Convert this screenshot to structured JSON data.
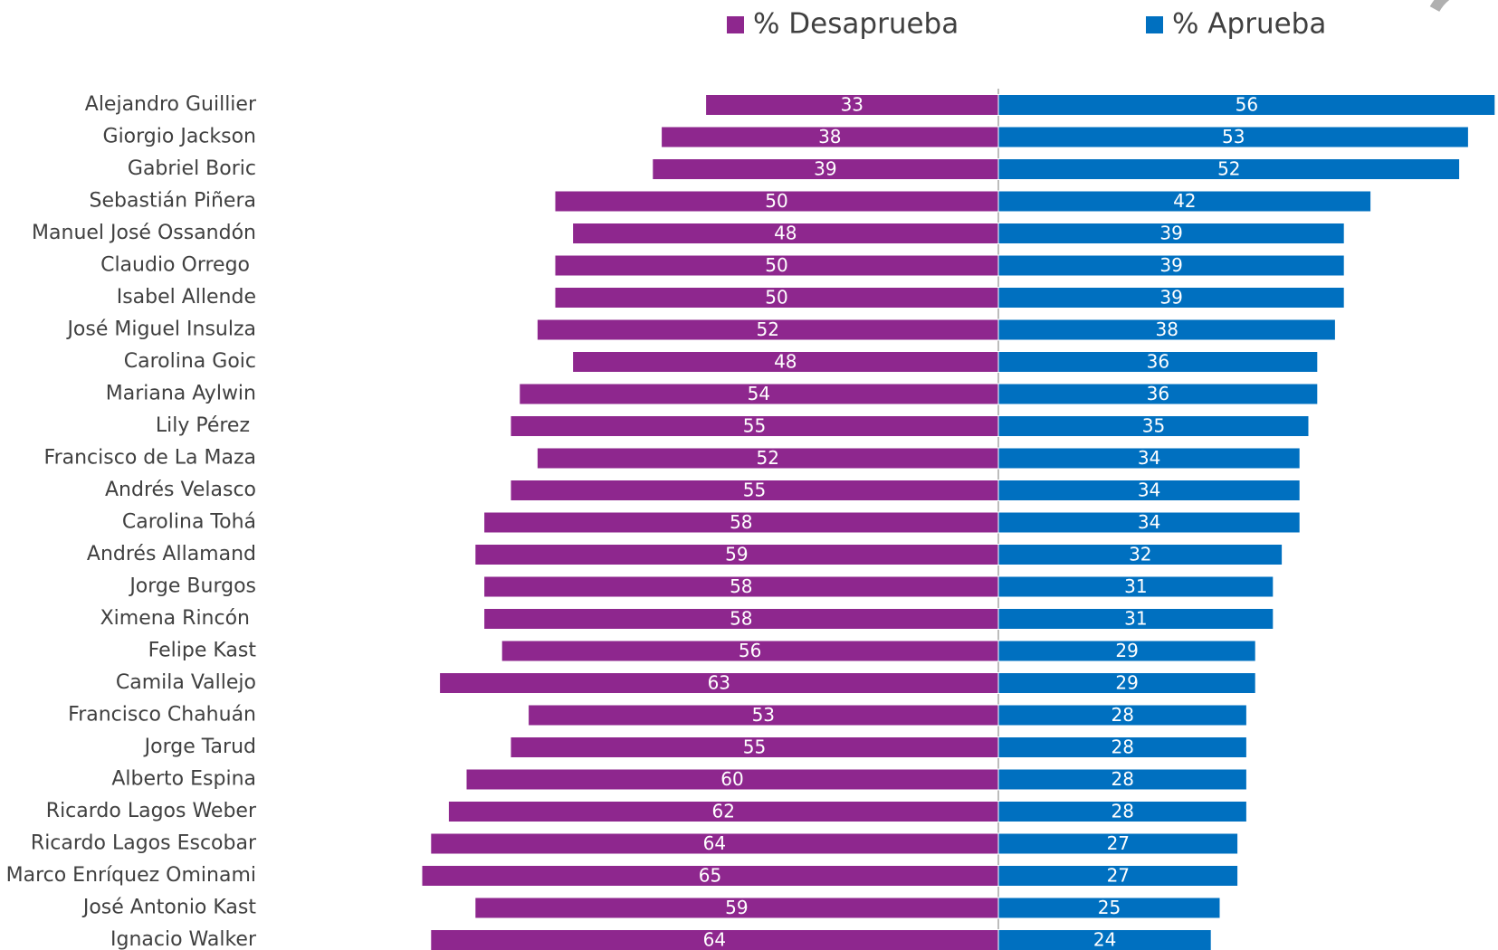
{
  "chart_data": {
    "type": "bar",
    "orientation": "diverging-horizontal",
    "categories": [
      "Alejandro Guillier",
      "Giorgio Jackson",
      "Gabriel Boric",
      "Sebastián Piñera",
      "Manuel José Ossandón",
      "Claudio Orrego ",
      "Isabel Allende",
      "José Miguel Insulza",
      "Carolina Goic",
      "Mariana Aylwin",
      "Lily Pérez ",
      "Francisco de La Maza",
      "Andrés Velasco",
      "Carolina Tohá",
      "Andrés Allamand",
      "Jorge Burgos",
      "Ximena Rincón ",
      "Felipe Kast",
      "Camila Vallejo",
      "Francisco Chahuán",
      "Jorge Tarud",
      "Alberto Espina",
      "Ricardo Lagos Weber",
      "Ricardo Lagos Escobar",
      "Marco Enríquez Ominami",
      "José Antonio Kast",
      "Ignacio Walker"
    ],
    "series": [
      {
        "name": "% Desaprueba",
        "color": "#8e278e",
        "values": [
          33,
          38,
          39,
          50,
          48,
          50,
          50,
          52,
          48,
          54,
          55,
          52,
          55,
          58,
          59,
          58,
          58,
          56,
          63,
          53,
          55,
          60,
          62,
          64,
          65,
          59,
          64
        ]
      },
      {
        "name": "% Aprueba",
        "color": "#0070c0",
        "values": [
          56,
          53,
          52,
          42,
          39,
          39,
          39,
          38,
          36,
          36,
          35,
          34,
          34,
          34,
          32,
          31,
          31,
          29,
          29,
          28,
          28,
          28,
          28,
          27,
          27,
          25,
          24
        ]
      }
    ]
  }
}
